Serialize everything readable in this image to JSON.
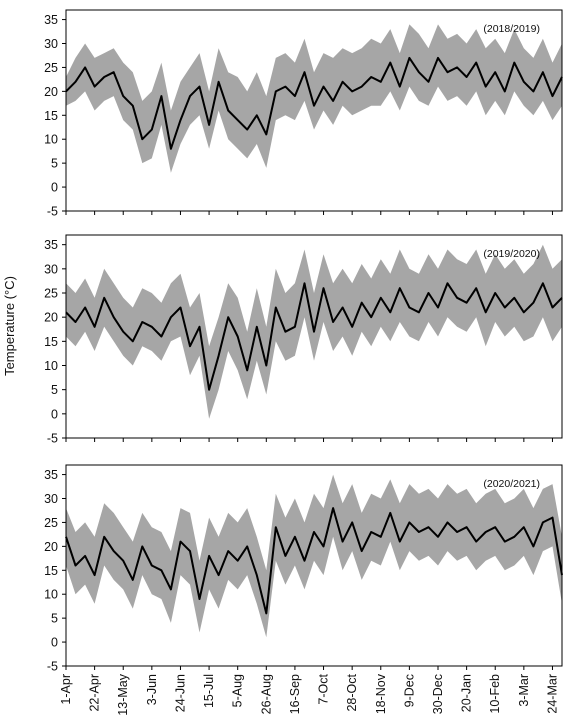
{
  "chart_data": {
    "type": "line",
    "ylabel": "Temperature (°C)",
    "xlabel": "",
    "y_ticks": [
      -5,
      0,
      5,
      10,
      15,
      20,
      25,
      30,
      35
    ],
    "ylim": [
      -5,
      37
    ],
    "x_tick_labels": [
      "1-Apr",
      "22-Apr",
      "13-May",
      "3-Jun",
      "24-Jun",
      "15-Jul",
      "5-Aug",
      "26-Aug",
      "16-Sep",
      "7-Oct",
      "28-Oct",
      "18-Nov",
      "9-Dec",
      "30-Dec",
      "20-Jan",
      "10-Feb",
      "3-Mar",
      "24-Mar"
    ],
    "x_tick_days": [
      0,
      21,
      42,
      63,
      84,
      105,
      126,
      147,
      168,
      189,
      210,
      231,
      252,
      273,
      294,
      315,
      336,
      357
    ],
    "xlim_days": [
      0,
      364
    ],
    "band_color": "#a6a6a6",
    "line_color": "#000000",
    "panels": [
      {
        "label": "(2018/2019)",
        "series": [
          {
            "x": [
              0,
              7,
              14,
              21,
              28,
              35,
              42,
              49,
              56,
              63,
              70,
              77,
              84,
              91,
              98,
              105,
              112,
              119,
              126,
              133,
              140,
              147,
              154,
              161,
              168,
              175,
              182,
              189,
              196,
              203,
              210,
              217,
              224,
              231,
              238,
              245,
              252,
              259,
              266,
              273,
              280,
              287,
              294,
              301,
              308,
              315,
              322,
              329,
              336,
              343,
              350,
              357,
              364
            ],
            "mean": [
              20,
              22,
              25,
              21,
              23,
              24,
              19,
              17,
              10,
              12,
              19,
              8,
              14,
              19,
              21,
              13,
              22,
              16,
              14,
              12,
              15,
              11,
              20,
              21,
              19,
              24,
              17,
              21,
              18,
              22,
              20,
              21,
              23,
              22,
              26,
              21,
              27,
              24,
              22,
              27,
              24,
              25,
              23,
              26,
              21,
              24,
              20,
              26,
              22,
              20,
              24,
              19,
              23
            ],
            "max": [
              23,
              27,
              30,
              27,
              28,
              29,
              26,
              24,
              18,
              20,
              26,
              16,
              22,
              25,
              28,
              20,
              29,
              24,
              23,
              20,
              24,
              19,
              27,
              28,
              26,
              31,
              24,
              28,
              27,
              29,
              28,
              29,
              31,
              30,
              33,
              28,
              34,
              32,
              29,
              34,
              31,
              32,
              30,
              33,
              29,
              31,
              28,
              33,
              29,
              27,
              31,
              26,
              30
            ],
            "min": [
              17,
              18,
              20,
              16,
              18,
              19,
              14,
              12,
              5,
              6,
              13,
              3,
              9,
              13,
              15,
              8,
              16,
              10,
              8,
              6,
              9,
              4,
              14,
              15,
              14,
              18,
              12,
              16,
              13,
              17,
              15,
              16,
              17,
              17,
              20,
              16,
              21,
              18,
              17,
              21,
              18,
              19,
              17,
              20,
              15,
              18,
              15,
              20,
              17,
              15,
              18,
              14,
              17
            ]
          }
        ]
      },
      {
        "label": "(2019/2020)",
        "series": [
          {
            "x": [
              0,
              7,
              14,
              21,
              28,
              35,
              42,
              49,
              56,
              63,
              70,
              77,
              84,
              91,
              98,
              105,
              112,
              119,
              126,
              133,
              140,
              147,
              154,
              161,
              168,
              175,
              182,
              189,
              196,
              203,
              210,
              217,
              224,
              231,
              238,
              245,
              252,
              259,
              266,
              273,
              280,
              287,
              294,
              301,
              308,
              315,
              322,
              329,
              336,
              343,
              350,
              357,
              364
            ],
            "mean": [
              21,
              19,
              22,
              18,
              24,
              20,
              17,
              15,
              19,
              18,
              16,
              20,
              22,
              14,
              18,
              5,
              12,
              20,
              16,
              9,
              18,
              10,
              22,
              17,
              18,
              27,
              17,
              26,
              19,
              22,
              18,
              23,
              20,
              24,
              21,
              26,
              22,
              21,
              25,
              22,
              27,
              24,
              23,
              26,
              21,
              25,
              22,
              24,
              21,
              23,
              27,
              22,
              24
            ],
            "max": [
              27,
              25,
              28,
              24,
              30,
              27,
              24,
              22,
              26,
              25,
              23,
              27,
              29,
              22,
              25,
              14,
              20,
              27,
              24,
              17,
              26,
              18,
              30,
              25,
              27,
              34,
              25,
              33,
              27,
              30,
              27,
              31,
              28,
              32,
              29,
              34,
              30,
              29,
              33,
              30,
              34,
              32,
              31,
              34,
              29,
              33,
              30,
              32,
              29,
              31,
              35,
              30,
              32
            ],
            "min": [
              16,
              14,
              17,
              13,
              18,
              15,
              12,
              10,
              14,
              13,
              11,
              15,
              16,
              8,
              12,
              -1,
              5,
              13,
              9,
              3,
              11,
              4,
              15,
              11,
              12,
              20,
              11,
              19,
              13,
              16,
              12,
              17,
              14,
              18,
              15,
              19,
              16,
              15,
              19,
              16,
              20,
              18,
              17,
              20,
              14,
              19,
              16,
              18,
              15,
              16,
              20,
              15,
              18
            ]
          }
        ]
      },
      {
        "label": "(2020/2021)",
        "series": [
          {
            "x": [
              0,
              7,
              14,
              21,
              28,
              35,
              42,
              49,
              56,
              63,
              70,
              77,
              84,
              91,
              98,
              105,
              112,
              119,
              126,
              133,
              140,
              147,
              154,
              161,
              168,
              175,
              182,
              189,
              196,
              203,
              210,
              217,
              224,
              231,
              238,
              245,
              252,
              259,
              266,
              273,
              280,
              287,
              294,
              301,
              308,
              315,
              322,
              329,
              336,
              343,
              350,
              357,
              364
            ],
            "mean": [
              22,
              16,
              18,
              14,
              22,
              19,
              17,
              13,
              20,
              16,
              15,
              11,
              21,
              19,
              9,
              18,
              14,
              19,
              17,
              20,
              14,
              6,
              24,
              18,
              22,
              17,
              23,
              20,
              28,
              21,
              25,
              19,
              23,
              22,
              27,
              21,
              25,
              23,
              24,
              22,
              25,
              23,
              24,
              21,
              23,
              24,
              21,
              22,
              24,
              20,
              25,
              26,
              14
            ],
            "max": [
              28,
              23,
              25,
              22,
              29,
              27,
              24,
              21,
              27,
              24,
              23,
              19,
              28,
              27,
              17,
              26,
              22,
              27,
              25,
              28,
              22,
              15,
              31,
              26,
              30,
              25,
              31,
              28,
              35,
              29,
              33,
              27,
              31,
              30,
              34,
              29,
              33,
              31,
              32,
              30,
              33,
              31,
              32,
              29,
              31,
              32,
              29,
              30,
              32,
              28,
              32,
              33,
              22
            ],
            "min": [
              16,
              10,
              12,
              8,
              16,
              13,
              11,
              7,
              14,
              10,
              9,
              4,
              14,
              12,
              2,
              11,
              7,
              13,
              11,
              14,
              8,
              1,
              17,
              12,
              16,
              11,
              17,
              14,
              22,
              15,
              19,
              13,
              17,
              16,
              21,
              15,
              19,
              17,
              18,
              16,
              19,
              17,
              18,
              15,
              17,
              18,
              15,
              16,
              18,
              14,
              19,
              20,
              8
            ]
          }
        ]
      }
    ]
  }
}
